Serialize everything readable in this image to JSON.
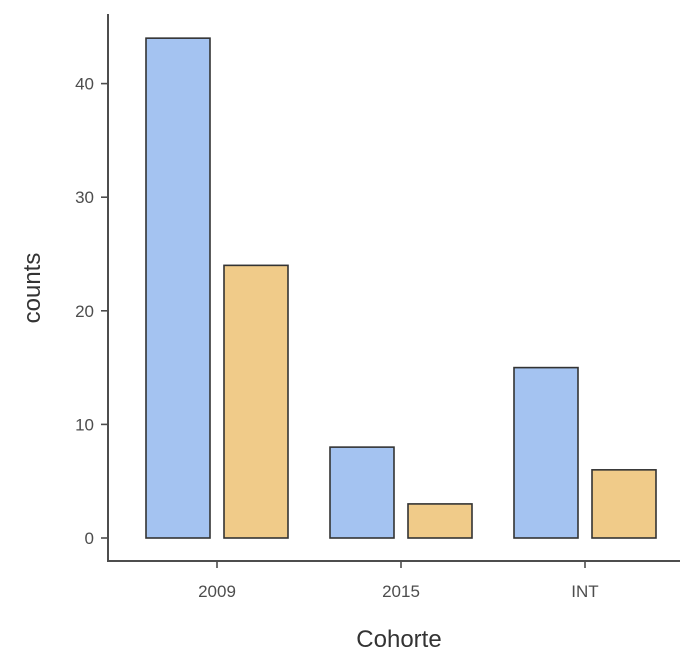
{
  "chart_data": {
    "type": "bar",
    "title": "",
    "xlabel": "Cohorte",
    "ylabel": "counts",
    "categories": [
      "2009",
      "2015",
      "INT"
    ],
    "series": [
      {
        "color": "#a4c3f1",
        "values": [
          44,
          8,
          15
        ]
      },
      {
        "color": "#f0cb89",
        "values": [
          24,
          3,
          6
        ]
      }
    ],
    "ylim": [
      0,
      45.5
    ],
    "yticks": [
      0,
      10,
      20,
      30,
      40
    ],
    "grid": false,
    "legend": "none",
    "colors": {
      "axis": "#4d4d4d",
      "bar_border": "#333333",
      "text": "#333333"
    }
  }
}
